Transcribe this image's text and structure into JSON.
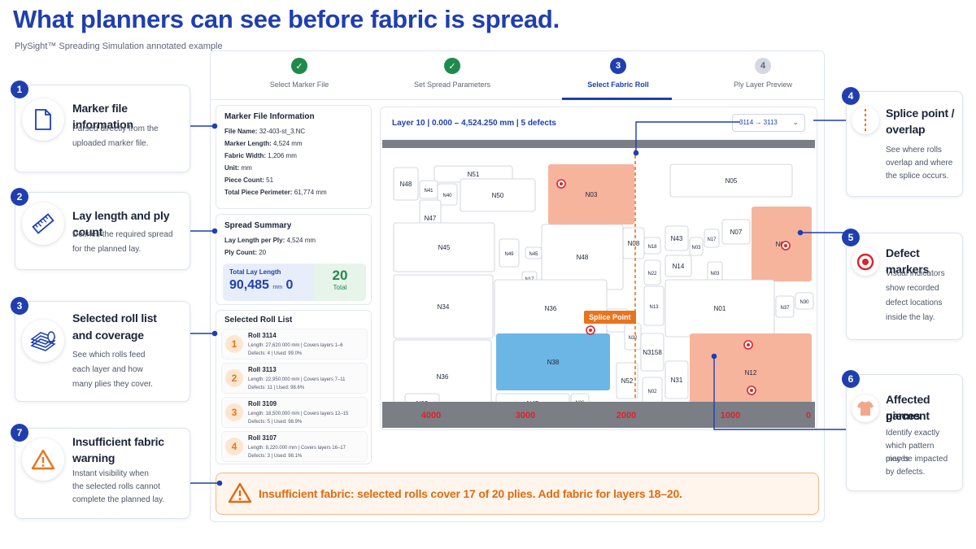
{
  "header": {
    "title": "What planners can see before fabric is spread.",
    "subtitle": "PlySight™ Spreading Simulation annotated example"
  },
  "callouts": [
    {
      "num": "1",
      "title": "Marker file information",
      "body": [
        "Parsed directly from the",
        "uploaded marker file."
      ],
      "icon": "document-icon"
    },
    {
      "num": "2",
      "title": "Lay length and ply count",
      "body": [
        "Defines the required spread",
        "for the planned lay."
      ],
      "icon": "ruler-icon"
    },
    {
      "num": "3",
      "title": "Selected roll list",
      "title2": "and coverage",
      "body": [
        "See which rolls feed",
        "each layer and how",
        "many plies they cover."
      ],
      "icon": "fabric-rolls-icon"
    },
    {
      "num": "7",
      "title": "Insufficient fabric",
      "title2": "warning",
      "body": [
        "Instant visibility when",
        "the selected rolls cannot",
        "complete the planned lay."
      ],
      "icon": "warning-icon"
    },
    {
      "num": "4",
      "title": "Splice point /",
      "title2": "overlap",
      "body": [
        "See where rolls",
        "overlap and where",
        "the splice occurs."
      ],
      "icon": "splice-icon"
    },
    {
      "num": "5",
      "title": "Defect markers",
      "body": [
        "Visual indicators",
        "show recorded",
        "defect locations",
        "inside the lay."
      ],
      "icon": "defect-marker-icon"
    },
    {
      "num": "6",
      "title": "Affected garment",
      "title2": "pieces",
      "body": [
        "Identify exactly",
        "which pattern pieces",
        "may be impacted",
        "by defects."
      ],
      "icon": "garment-icon"
    }
  ],
  "steps": [
    {
      "num": "",
      "label": "Select Marker File",
      "state": "done"
    },
    {
      "num": "",
      "label": "Set Spread Parameters",
      "state": "done"
    },
    {
      "num": "3",
      "label": "Select Fabric Roll",
      "state": "active"
    },
    {
      "num": "4",
      "label": "Ply Layer Preview",
      "state": "todo"
    }
  ],
  "marker_info": {
    "heading": "Marker File Information",
    "rows": [
      {
        "k": "File Name:",
        "v": "32-403-st_3.NC"
      },
      {
        "k": "Marker Length:",
        "v": "4,524 mm"
      },
      {
        "k": "Fabric Width:",
        "v": "1,206 mm"
      },
      {
        "k": "Unit:",
        "v": "mm"
      },
      {
        "k": "Piece Count:",
        "v": "51"
      },
      {
        "k": "Total Piece Perimeter:",
        "v": "61,774 mm"
      }
    ]
  },
  "spread_summary": {
    "heading": "Spread Summary",
    "rows": [
      {
        "k": "Lay Length per Ply:",
        "v": "4,524 mm"
      },
      {
        "k": "Ply Count:",
        "v": "20"
      }
    ],
    "total_label": "Total Lay Length",
    "total_value": "90,485",
    "total_unit": "mm",
    "total_extra": "0",
    "total_count": "20",
    "total_count_label": "Total"
  },
  "roll_list": {
    "heading": "Selected Roll List",
    "rolls": [
      {
        "num": "1",
        "name": "Roll 3114",
        "line1": "Length: 27,620.000 mm  |  Covers layers 1–6",
        "line2": "Defects: 4  |  Used: 99.0%"
      },
      {
        "num": "2",
        "name": "Roll 3113",
        "line1": "Length: 22,950.000 mm  |  Covers layers 7–11",
        "line2": "Defects: 11  |  Used: 98.6%"
      },
      {
        "num": "3",
        "name": "Roll 3109",
        "line1": "Length: 18,500.000 mm  |  Covers layers 12–15",
        "line2": "Defects: 5  |  Used: 98.9%"
      },
      {
        "num": "4",
        "name": "Roll 3107",
        "line1": "Length: 8,220.000 mm  |  Covers layers 16–17",
        "line2": "Defects: 3  |  Used: 98.1%"
      }
    ]
  },
  "lay": {
    "title": "Layer 10 | 0.000 – 4,524.250 mm | 5 defects",
    "roll_select": "3114 → 3113",
    "splice_label": "Splice Point",
    "ruler": [
      "4000",
      "3000",
      "2000",
      "1000",
      "0"
    ],
    "pieces": [
      {
        "id": "N51",
        "c": "n"
      },
      {
        "id": "N48",
        "c": "n"
      },
      {
        "id": "N41",
        "c": "n"
      },
      {
        "id": "N40",
        "c": "n"
      },
      {
        "id": "N50",
        "c": "n"
      },
      {
        "id": "N47",
        "c": "n"
      },
      {
        "id": "N03",
        "c": "salmon"
      },
      {
        "id": "N05",
        "c": "n"
      },
      {
        "id": "N45",
        "c": "n"
      },
      {
        "id": "N08",
        "c": "n"
      },
      {
        "id": "N18",
        "c": "n"
      },
      {
        "id": "N43",
        "c": "n"
      },
      {
        "id": "N03",
        "c": "n"
      },
      {
        "id": "N17",
        "c": "n"
      },
      {
        "id": "N07",
        "c": "n"
      },
      {
        "id": "N04",
        "c": "salmon"
      },
      {
        "id": "N45",
        "c": "n"
      },
      {
        "id": "N49",
        "c": "n"
      },
      {
        "id": "N45",
        "c": "n"
      },
      {
        "id": "N48",
        "c": "n"
      },
      {
        "id": "N22",
        "c": "n"
      },
      {
        "id": "N14",
        "c": "n"
      },
      {
        "id": "N03",
        "c": "n"
      },
      {
        "id": "N17",
        "c": "n"
      },
      {
        "id": "N34",
        "c": "n"
      },
      {
        "id": "N36",
        "c": "n"
      },
      {
        "id": "N13",
        "c": "n"
      },
      {
        "id": "N01",
        "c": "n"
      },
      {
        "id": "N37",
        "c": "n"
      },
      {
        "id": "N30",
        "c": "n"
      },
      {
        "id": "N17",
        "c": "n"
      },
      {
        "id": "N32",
        "c": "n"
      },
      {
        "id": "N36",
        "c": "n"
      },
      {
        "id": "N38",
        "c": "blue"
      },
      {
        "id": "N3158",
        "c": "n"
      },
      {
        "id": "N12",
        "c": "salmon"
      },
      {
        "id": "N52",
        "c": "n"
      },
      {
        "id": "N02",
        "c": "n"
      },
      {
        "id": "N31",
        "c": "n"
      },
      {
        "id": "N45",
        "c": "n"
      },
      {
        "id": "N36",
        "c": "n"
      },
      {
        "id": "N03",
        "c": "n"
      }
    ]
  },
  "warning": {
    "text": "Insufficient fabric: selected rolls cover 17 of 20 plies. Add fabric for layers 18–20."
  },
  "colors": {
    "brand_blue": "#1f3fb0",
    "success_green": "#1f8a4c",
    "warning_orange": "#e8741e",
    "defect_red": "#d9252a",
    "affected_salmon": "#f6b49d",
    "selected_blue": "#6cb6e6"
  }
}
